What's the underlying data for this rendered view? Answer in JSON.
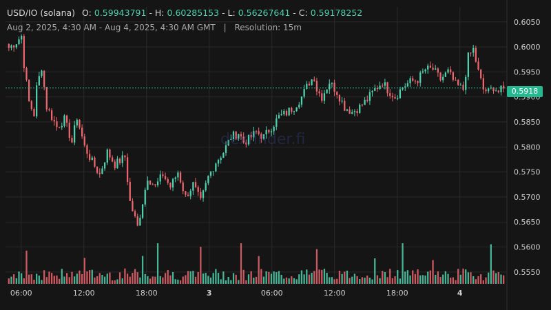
{
  "header": {
    "symbol": "USD/IO (solana)",
    "ohlc": [
      {
        "label": "O:",
        "value": "0.59943791"
      },
      {
        "label": "H:",
        "value": "0.60285153"
      },
      {
        "label": "L:",
        "value": "0.56267641"
      },
      {
        "label": "C:",
        "value": "0.59178252"
      }
    ],
    "range": "Aug 2, 2025, 4:30 AM - Aug 4, 2025, 4:30 AM GMT",
    "separator": "|",
    "resolution": "Resolution: 15m"
  },
  "watermark": "dexfinder.fi",
  "colors": {
    "up": "#4fd1ad",
    "down": "#f0656e",
    "background": "#151515",
    "grid": "#2a2a2a",
    "current": "#26b890"
  },
  "chart_data": {
    "type": "candlestick",
    "title": "USD/IO (solana)",
    "interval": "15m",
    "current_price": 0.59178,
    "current_price_label": "0.5918",
    "ylim": [
      0.5525,
      0.608
    ],
    "y_ticks": [
      "0.6050",
      "0.6000",
      "0.5950",
      "0.5900",
      "0.5850",
      "0.5800",
      "0.5750",
      "0.5700",
      "0.5650",
      "0.5600",
      "0.5550"
    ],
    "x_ticks": [
      {
        "label": "06:00",
        "t": 6,
        "bold": false
      },
      {
        "label": "12:00",
        "t": 12,
        "bold": false
      },
      {
        "label": "18:00",
        "t": 18,
        "bold": false
      },
      {
        "label": "3",
        "t": 24,
        "bold": true
      },
      {
        "label": "06:00",
        "t": 30,
        "bold": false
      },
      {
        "label": "12:00",
        "t": 36,
        "bold": false
      },
      {
        "label": "18:00",
        "t": 42,
        "bold": false
      },
      {
        "label": "4",
        "t": 48,
        "bold": true
      }
    ],
    "x_range_hours": [
      4.5,
      52.5
    ],
    "close_anchors": [
      [
        0,
        0.5998
      ],
      [
        3,
        0.601
      ],
      [
        5,
        0.6022
      ],
      [
        6,
        0.5965
      ],
      [
        8,
        0.589
      ],
      [
        10,
        0.5865
      ],
      [
        11,
        0.5918
      ],
      [
        13,
        0.596
      ],
      [
        15,
        0.588
      ],
      [
        19,
        0.584
      ],
      [
        22,
        0.5855
      ],
      [
        25,
        0.581
      ],
      [
        27,
        0.586
      ],
      [
        30,
        0.58
      ],
      [
        33,
        0.577
      ],
      [
        36,
        0.5745
      ],
      [
        39,
        0.579
      ],
      [
        42,
        0.5765
      ],
      [
        46,
        0.578
      ],
      [
        48,
        0.569
      ],
      [
        51,
        0.564
      ],
      [
        53,
        0.569
      ],
      [
        55,
        0.574
      ],
      [
        58,
        0.572
      ],
      [
        61,
        0.5745
      ],
      [
        64,
        0.572
      ],
      [
        67,
        0.575
      ],
      [
        70,
        0.57
      ],
      [
        73,
        0.5725
      ],
      [
        76,
        0.569
      ],
      [
        79,
        0.574
      ],
      [
        82,
        0.577
      ],
      [
        85,
        0.579
      ],
      [
        88,
        0.582
      ],
      [
        91,
        0.5828
      ],
      [
        93,
        0.581
      ],
      [
        95,
        0.5815
      ],
      [
        98,
        0.583
      ],
      [
        101,
        0.582
      ],
      [
        104,
        0.584
      ],
      [
        107,
        0.586
      ],
      [
        110,
        0.5868
      ],
      [
        113,
        0.588
      ],
      [
        116,
        0.59
      ],
      [
        119,
        0.593
      ],
      [
        121,
        0.594
      ],
      [
        122,
        0.5915
      ],
      [
        124,
        0.59
      ],
      [
        127,
        0.593
      ],
      [
        130,
        0.591
      ],
      [
        133,
        0.588
      ],
      [
        136,
        0.587
      ],
      [
        139,
        0.588
      ],
      [
        142,
        0.5895
      ],
      [
        145,
        0.5915
      ],
      [
        148,
        0.593
      ],
      [
        150,
        0.5915
      ],
      [
        153,
        0.59
      ],
      [
        156,
        0.592
      ],
      [
        159,
        0.593
      ],
      [
        162,
        0.5935
      ],
      [
        165,
        0.5955
      ],
      [
        168,
        0.5955
      ],
      [
        171,
        0.5935
      ],
      [
        174,
        0.595
      ],
      [
        177,
        0.5925
      ],
      [
        180,
        0.5915
      ],
      [
        182,
        0.598
      ],
      [
        184,
        0.5995
      ],
      [
        186,
        0.595
      ],
      [
        188,
        0.5915
      ],
      [
        190,
        0.591
      ],
      [
        192,
        0.592
      ],
      [
        194,
        0.591
      ],
      [
        196,
        0.5917
      ]
    ]
  }
}
